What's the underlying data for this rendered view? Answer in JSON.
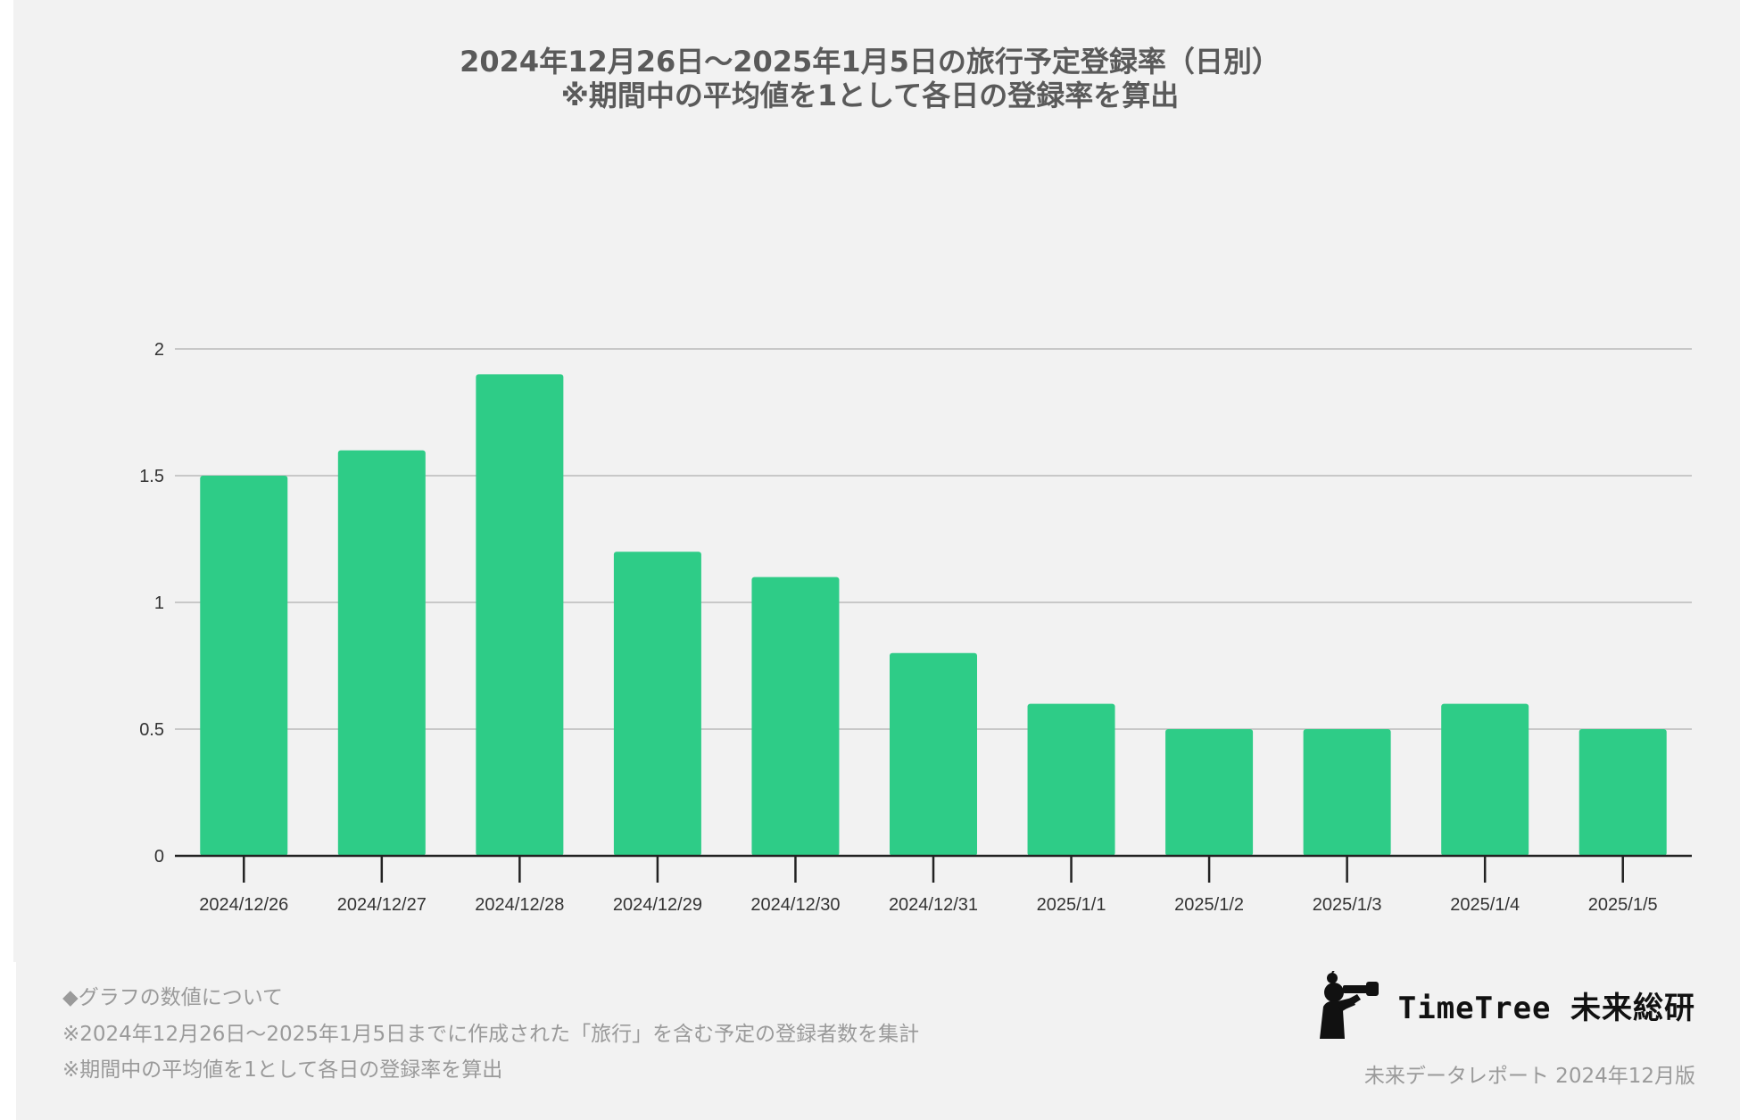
{
  "colors": {
    "bar": "#2ecc87",
    "grid": "#c8c8c8",
    "axis": "#222222",
    "tick_text": "#333333",
    "title_text": "#5a5a5a",
    "note_text": "#9a9a9a",
    "panel": "#f2f2f2"
  },
  "chart_data": {
    "type": "bar",
    "title": "2024年12月26日〜2025年1月5日の旅行予定登録率（日別）",
    "subtitle": "※期間中の平均値を1として各日の登録率を算出",
    "categories": [
      "2024/12/26",
      "2024/12/27",
      "2024/12/28",
      "2024/12/29",
      "2024/12/30",
      "2024/12/31",
      "2025/1/1",
      "2025/1/2",
      "2025/1/3",
      "2025/1/4",
      "2025/1/5"
    ],
    "values": [
      1.5,
      1.6,
      1.9,
      1.2,
      1.1,
      0.8,
      0.6,
      0.5,
      0.5,
      0.6,
      0.5
    ],
    "xlabel": "",
    "ylabel": "",
    "ylim": [
      0,
      2
    ],
    "yticks": [
      0,
      0.5,
      1,
      1.5,
      2
    ],
    "ytick_labels": [
      "0",
      "0.5",
      "1",
      "1.5",
      "2"
    ],
    "grid": true,
    "legend": "none"
  },
  "notes": {
    "heading": "◆グラフの数値について",
    "line1": "※2024年12月26日〜2025年1月5日までに作成された「旅行」を含む予定の登録者数を集計",
    "line2": "※期間中の平均値を1として各日の登録率を算出"
  },
  "brand": {
    "name": "TimeTree 未来総研",
    "mascot_icon": "binoculars-person-icon"
  },
  "edition": "未来データレポート 2024年12月版"
}
